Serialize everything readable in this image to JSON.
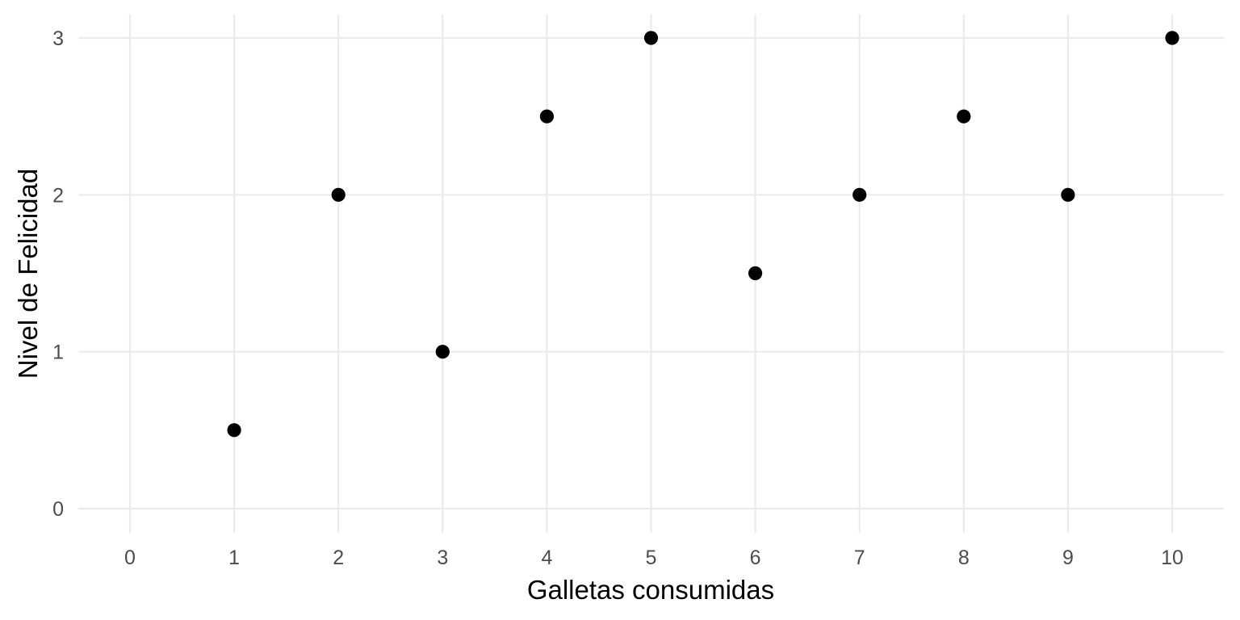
{
  "chart_data": {
    "type": "scatter",
    "title": "",
    "xlabel": "Galletas consumidas",
    "ylabel": "Nivel de Felicidad",
    "x": [
      1,
      2,
      3,
      4,
      5,
      6,
      7,
      8,
      9,
      10
    ],
    "y": [
      0.5,
      2,
      1,
      2.5,
      3,
      1.5,
      2,
      2.5,
      2,
      3
    ],
    "xlim": [
      0,
      10
    ],
    "ylim": [
      0,
      3
    ],
    "x_ticks": [
      "0",
      "1",
      "2",
      "3",
      "4",
      "5",
      "6",
      "7",
      "8",
      "9",
      "10"
    ],
    "y_ticks": [
      "0",
      "1",
      "2",
      "3"
    ],
    "grid": true,
    "legend": "none",
    "point_color": "#000000",
    "grid_color": "#ebebeb",
    "tick_color": "#4d4d4d"
  }
}
